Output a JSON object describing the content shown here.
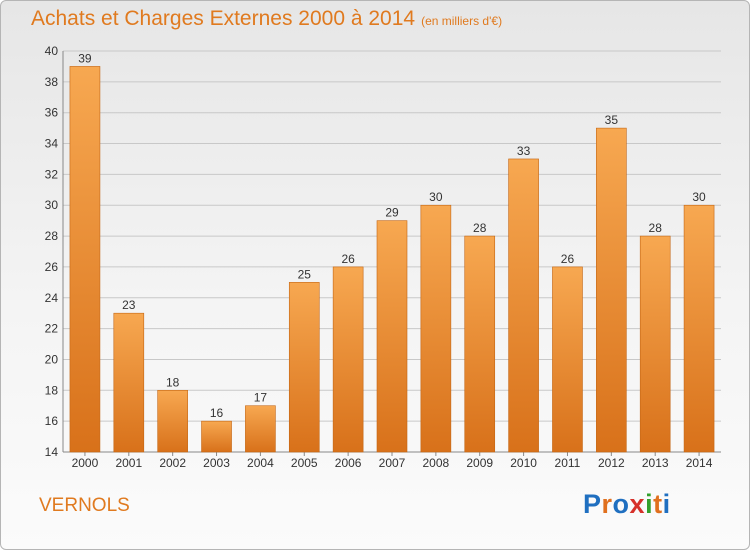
{
  "title": "Achats et Charges Externes 2000 à 2014",
  "subtitle": "(en milliers d'€)",
  "town": "VERNOLS",
  "logo": {
    "text": "Proxiti",
    "colors": [
      "#1f6fc0",
      "#e0701e",
      "#1f6fc0",
      "#d6302a",
      "#33a02c",
      "#e0701e",
      "#1f6fc0"
    ]
  },
  "colors": {
    "bar_top": "#f6a24a",
    "bar_bottom": "#d97317",
    "title": "#e07a1f",
    "grid": "#c8c8c8"
  },
  "chart_data": {
    "type": "bar",
    "title": "Achats et Charges Externes 2000 à 2014",
    "subtitle": "(en milliers d'€)",
    "categories": [
      "2000",
      "2001",
      "2002",
      "2003",
      "2004",
      "2005",
      "2006",
      "2007",
      "2008",
      "2009",
      "2010",
      "2011",
      "2012",
      "2013",
      "2014"
    ],
    "values": [
      39,
      23,
      18,
      16,
      17,
      25,
      26,
      29,
      30,
      28,
      33,
      26,
      35,
      28,
      30
    ],
    "ylim": [
      14,
      40
    ],
    "yticks": [
      14,
      16,
      18,
      20,
      22,
      24,
      26,
      28,
      30,
      32,
      34,
      36,
      38,
      40
    ],
    "grid": true,
    "xlabel": "",
    "ylabel": ""
  }
}
